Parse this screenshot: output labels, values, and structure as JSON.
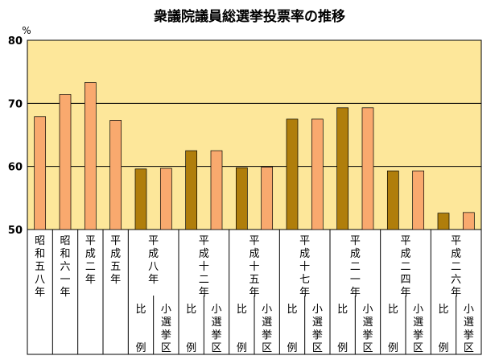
{
  "chart_data": {
    "type": "bar",
    "title": "衆議院議員総選挙投票率の推移",
    "yunit": "%",
    "ylim": [
      50,
      80
    ],
    "yticks": [
      50,
      60,
      70,
      80
    ],
    "grid": true,
    "colors": {
      "plot_background": "#fde79a",
      "single_bar": "#f9a96e",
      "proportional_bar": "#b07e0b",
      "district_bar": "#f9a96e"
    },
    "groups": [
      {
        "label": "昭和五八年",
        "bars": [
          {
            "kind": "single",
            "value": 67.9
          }
        ]
      },
      {
        "label": "昭和六一年",
        "bars": [
          {
            "kind": "single",
            "value": 71.4
          }
        ]
      },
      {
        "label": "平成二年",
        "bars": [
          {
            "kind": "single",
            "value": 73.3
          }
        ]
      },
      {
        "label": "平成五年",
        "bars": [
          {
            "kind": "single",
            "value": 67.3
          }
        ]
      },
      {
        "label": "平成八年",
        "bars": [
          {
            "kind": "比例",
            "sublabel": "比例",
            "value": 59.6
          },
          {
            "kind": "小選挙区",
            "sublabel": "小選挙区",
            "value": 59.7
          }
        ]
      },
      {
        "label": "平成十二年",
        "bars": [
          {
            "kind": "比例",
            "sublabel": "比例",
            "value": 62.5
          },
          {
            "kind": "小選挙区",
            "sublabel": "小選挙区",
            "value": 62.5
          }
        ]
      },
      {
        "label": "平成十五年",
        "bars": [
          {
            "kind": "比例",
            "sublabel": "比例",
            "value": 59.8
          },
          {
            "kind": "小選挙区",
            "sublabel": "小選挙区",
            "value": 59.9
          }
        ]
      },
      {
        "label": "平成十七年",
        "bars": [
          {
            "kind": "比例",
            "sublabel": "比例",
            "value": 67.5
          },
          {
            "kind": "小選挙区",
            "sublabel": "小選挙区",
            "value": 67.5
          }
        ]
      },
      {
        "label": "平成二一年",
        "bars": [
          {
            "kind": "比例",
            "sublabel": "比例",
            "value": 69.3
          },
          {
            "kind": "小選挙区",
            "sublabel": "小選挙区",
            "value": 69.3
          }
        ]
      },
      {
        "label": "平成二四年",
        "bars": [
          {
            "kind": "比例",
            "sublabel": "比例",
            "value": 59.3
          },
          {
            "kind": "小選挙区",
            "sublabel": "小選挙区",
            "value": 59.3
          }
        ]
      },
      {
        "label": "平成二六年",
        "bars": [
          {
            "kind": "比例",
            "sublabel": "比例",
            "value": 52.6
          },
          {
            "kind": "小選挙区",
            "sublabel": "小選挙区",
            "value": 52.7
          }
        ]
      }
    ]
  }
}
